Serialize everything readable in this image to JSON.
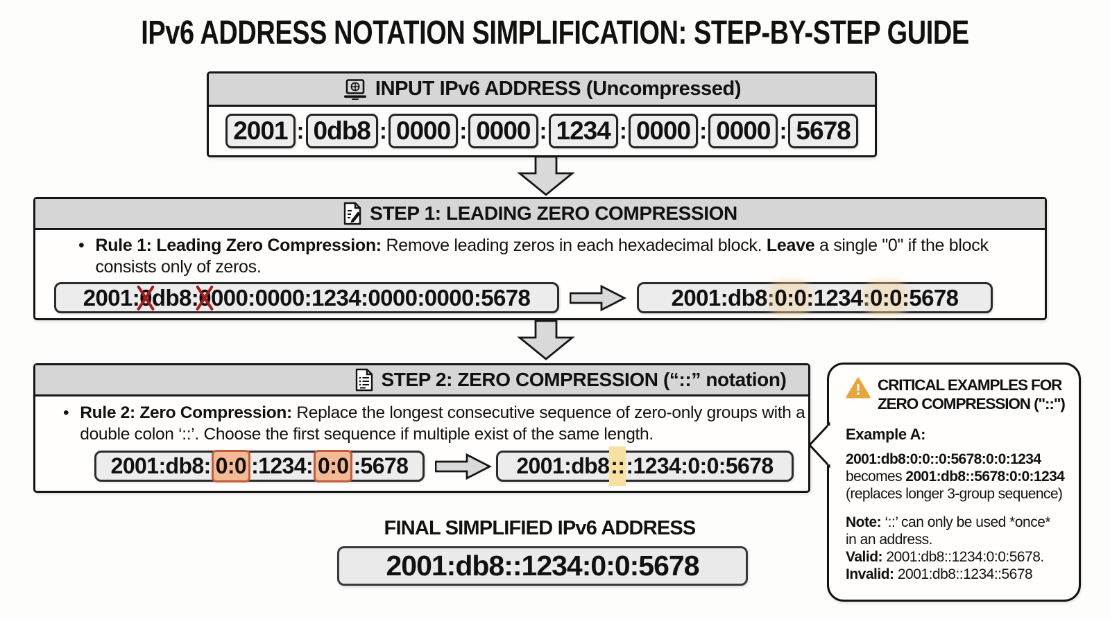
{
  "title": "IPv6 ADDRESS NOTATION SIMPLIFICATION: STEP-BY-STEP GUIDE",
  "input": {
    "header": "INPUT IPv6 ADDRESS (Uncompressed)",
    "icon": "laptop-globe-icon",
    "blocks": [
      "2001",
      "0db8",
      "0000",
      "0000",
      "1234",
      "0000",
      "0000",
      "5678"
    ],
    "separator": ":"
  },
  "step1": {
    "header": "STEP 1: LEADING ZERO COMPRESSION",
    "icon": "memo-pencil-icon",
    "rule": {
      "bullet": "•",
      "bold1": "Rule 1: Leading Zero Compression:",
      "text1": " Remove leading zeros in each hexadecimal block. ",
      "bold2": "Leave",
      "text2": " a single \"0\" if the block consists only of zeros."
    },
    "before_segments": [
      {
        "text": "2001:"
      },
      {
        "text": "0",
        "crossed": true
      },
      {
        "text": "db8:"
      },
      {
        "text": "0",
        "crossed": true
      },
      {
        "text": "000:0000:1234:0000:0000:5678"
      }
    ],
    "after_segments": [
      {
        "text": "2001:db8:"
      },
      {
        "text": "0:0",
        "highlight": "soft"
      },
      {
        "text": ":1234:"
      },
      {
        "text": "0:0",
        "highlight": "soft"
      },
      {
        "text": ":5678"
      }
    ]
  },
  "step2": {
    "header": "STEP 2: ZERO COMPRESSION (“::” notation)",
    "icon": "checklist-doc-icon",
    "rule": {
      "bullet": "•",
      "bold1": "Rule 2: Zero Compression:",
      "text1": " Replace the longest consecutive sequence of zero-only groups with a double colon ‘::’. Choose the first sequence if multiple exist of the same length."
    },
    "before_segments": [
      {
        "text": "2001:db8:"
      },
      {
        "text": "0:0",
        "highlight": "salmon"
      },
      {
        "text": ":1234:"
      },
      {
        "text": "0:0",
        "highlight": "salmon"
      },
      {
        "text": ":5678"
      }
    ],
    "after_segments": [
      {
        "text": "2001:db8"
      },
      {
        "text": "::",
        "highlight": "yellow"
      },
      {
        "text": ":1234:0:0:5678"
      }
    ]
  },
  "side_panel": {
    "icon": "warning-icon",
    "title_line1": "CRITICAL EXAMPLES FOR",
    "title_line2": "ZERO COMPRESSION (\"::\")",
    "example_label": "Example A:",
    "example_before": "2001:db8:0:0::0:5678:0:0:1234",
    "becomes_word": "becomes ",
    "example_after": "2001:db8::5678:0:0:1234",
    "example_note": "(replaces longer 3-group sequence)",
    "note_bold": "Note:",
    "note_text": " ‘::’ can only be used *once* in an address.",
    "valid_bold": "Valid:",
    "valid_text": " 2001:db8::1234:0:0:5678.",
    "invalid_bold": "Invalid:",
    "invalid_text": " 2001:db8::1234::5678"
  },
  "final": {
    "label": "FINAL SIMPLIFIED IPv6 ADDRESS",
    "address": "2001:db8::1234:0:0:5678"
  },
  "colors": {
    "header_gray": "#d6d6d6",
    "pill_gray": "#ececec",
    "arrow_gray": "#d9d9d9",
    "salmon_highlight": "#f5ba93",
    "salmon_border": "#c25c3e",
    "yellow_highlight": "#f7e0a0",
    "warning_orange": "#e9a43c",
    "cross_red": "#ab1a1a"
  }
}
